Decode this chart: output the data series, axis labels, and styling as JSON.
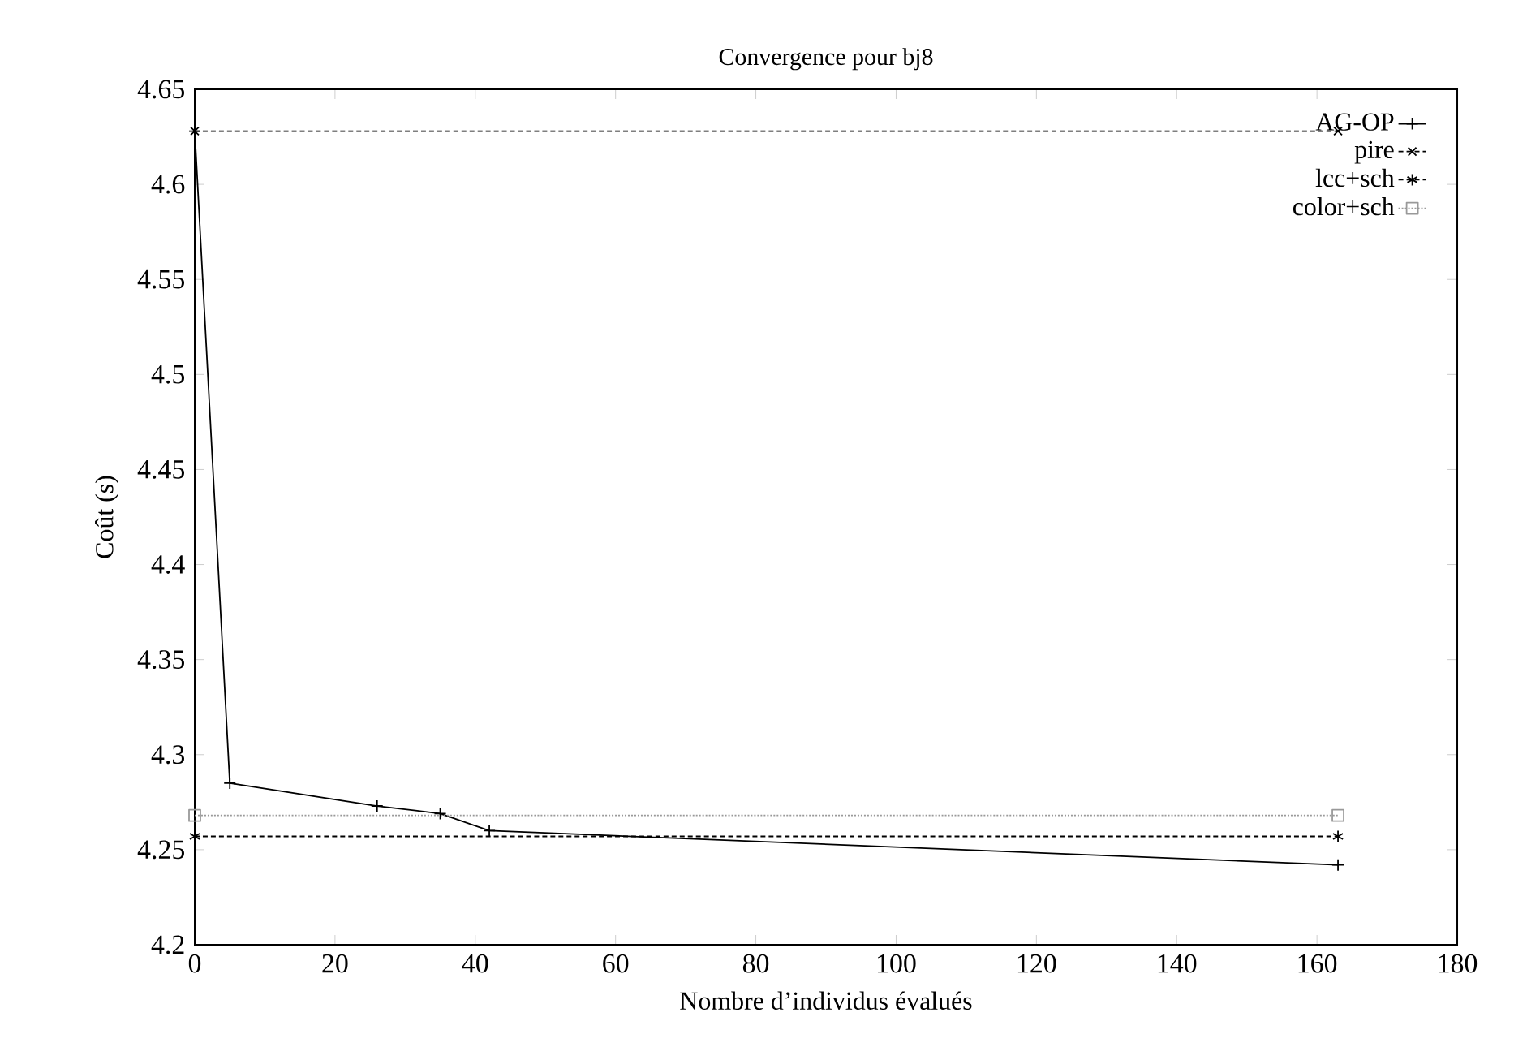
{
  "chart_data": {
    "type": "line",
    "title": "Convergence pour bj8",
    "xlabel": "Nombre d’individus évalués",
    "ylabel": "Coût (s)",
    "xlim": [
      0,
      180
    ],
    "ylim": [
      4.2,
      4.65
    ],
    "xticks": [
      0,
      20,
      40,
      60,
      80,
      100,
      120,
      140,
      160,
      180
    ],
    "yticks": [
      4.2,
      4.25,
      4.3,
      4.35,
      4.4,
      4.45,
      4.5,
      4.55,
      4.6,
      4.65
    ],
    "legend": "top right",
    "grid": false,
    "series": [
      {
        "name": "AG-OP",
        "color": "#000000",
        "x": [
          0,
          5,
          26,
          35,
          42,
          163
        ],
        "values": [
          4.628,
          4.285,
          4.273,
          4.269,
          4.26,
          4.242
        ],
        "marker": "plus",
        "line_style": "solid"
      },
      {
        "name": "pire",
        "color": "#000000",
        "x": [
          0,
          163
        ],
        "values": [
          4.628,
          4.628
        ],
        "marker": "cross",
        "line_style": "dashed"
      },
      {
        "name": "lcc+sch",
        "color": "#000000",
        "x": [
          0,
          163
        ],
        "values": [
          4.257,
          4.257
        ],
        "marker": "cross",
        "line_style": "dashed"
      },
      {
        "name": "color+sch",
        "color": "#999999",
        "x": [
          0,
          163
        ],
        "values": [
          4.268,
          4.268
        ],
        "marker": "square",
        "line_style": "dotted"
      }
    ]
  }
}
